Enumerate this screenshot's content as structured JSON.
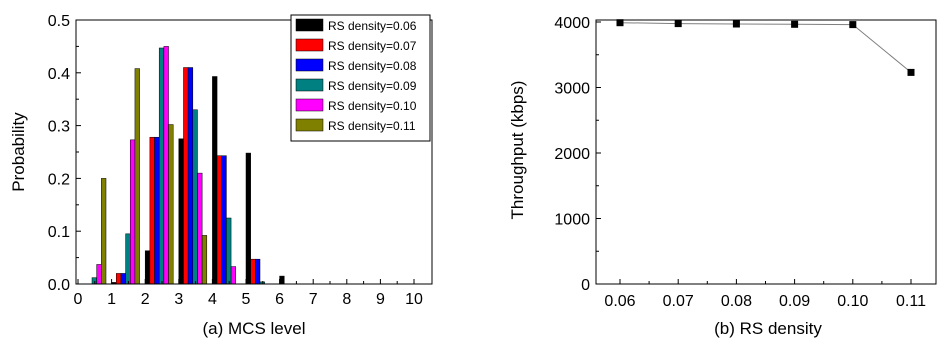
{
  "chart_data": [
    {
      "type": "bar",
      "xlabel": "(a) MCS level",
      "ylabel": "Probability",
      "xlim": [
        0,
        10
      ],
      "ylim": [
        0,
        0.5
      ],
      "xticks": [
        "0",
        "1",
        "2",
        "3",
        "4",
        "5",
        "6",
        "7",
        "8",
        "9",
        "10"
      ],
      "yticks": [
        "0.0",
        "0.1",
        "0.2",
        "0.3",
        "0.4",
        "0.5"
      ],
      "legend_position": "top-right",
      "categories": [
        0,
        1,
        2,
        3,
        4,
        5,
        6,
        7,
        8,
        9,
        10
      ],
      "series": [
        {
          "name": "RS density=0.06",
          "color": "#000000",
          "values": [
            0,
            0.003,
            0.063,
            0.275,
            0.393,
            0.248,
            0.015,
            0,
            0,
            0,
            0
          ]
        },
        {
          "name": "RS density=0.07",
          "color": "#ff0000",
          "values": [
            0,
            0.02,
            0.278,
            0.41,
            0.243,
            0.047,
            0,
            0,
            0,
            0,
            0
          ]
        },
        {
          "name": "RS density=0.08",
          "color": "#0000ff",
          "values": [
            0,
            0.02,
            0.278,
            0.41,
            0.243,
            0.047,
            0,
            0,
            0,
            0,
            0
          ]
        },
        {
          "name": "RS density=0.09",
          "color": "#008080",
          "values": [
            0.012,
            0.095,
            0.447,
            0.33,
            0.125,
            0.004,
            0,
            0,
            0,
            0,
            0
          ]
        },
        {
          "name": "RS density=0.10",
          "color": "#ff00ff",
          "values": [
            0.037,
            0.273,
            0.45,
            0.21,
            0.033,
            0,
            0,
            0,
            0,
            0,
            0
          ]
        },
        {
          "name": "RS density=0.11",
          "color": "#808000",
          "values": [
            0.2,
            0.408,
            0.302,
            0.092,
            0,
            0,
            0,
            0,
            0,
            0,
            0
          ]
        }
      ]
    },
    {
      "type": "line",
      "xlabel": "(b) RS density",
      "ylabel": "Throughput (kbps)",
      "ylim": [
        0,
        4000
      ],
      "xticks": [
        "0.06",
        "0.07",
        "0.08",
        "0.09",
        "0.10",
        "0.11"
      ],
      "yticks": [
        "0",
        "1000",
        "2000",
        "3000",
        "4000"
      ],
      "series": [
        {
          "color": "#000000",
          "x": [
            "0.06",
            "0.07",
            "0.08",
            "0.09",
            "0.10",
            "0.11"
          ],
          "values": [
            3990,
            3975,
            3970,
            3965,
            3960,
            3230
          ]
        }
      ]
    }
  ]
}
